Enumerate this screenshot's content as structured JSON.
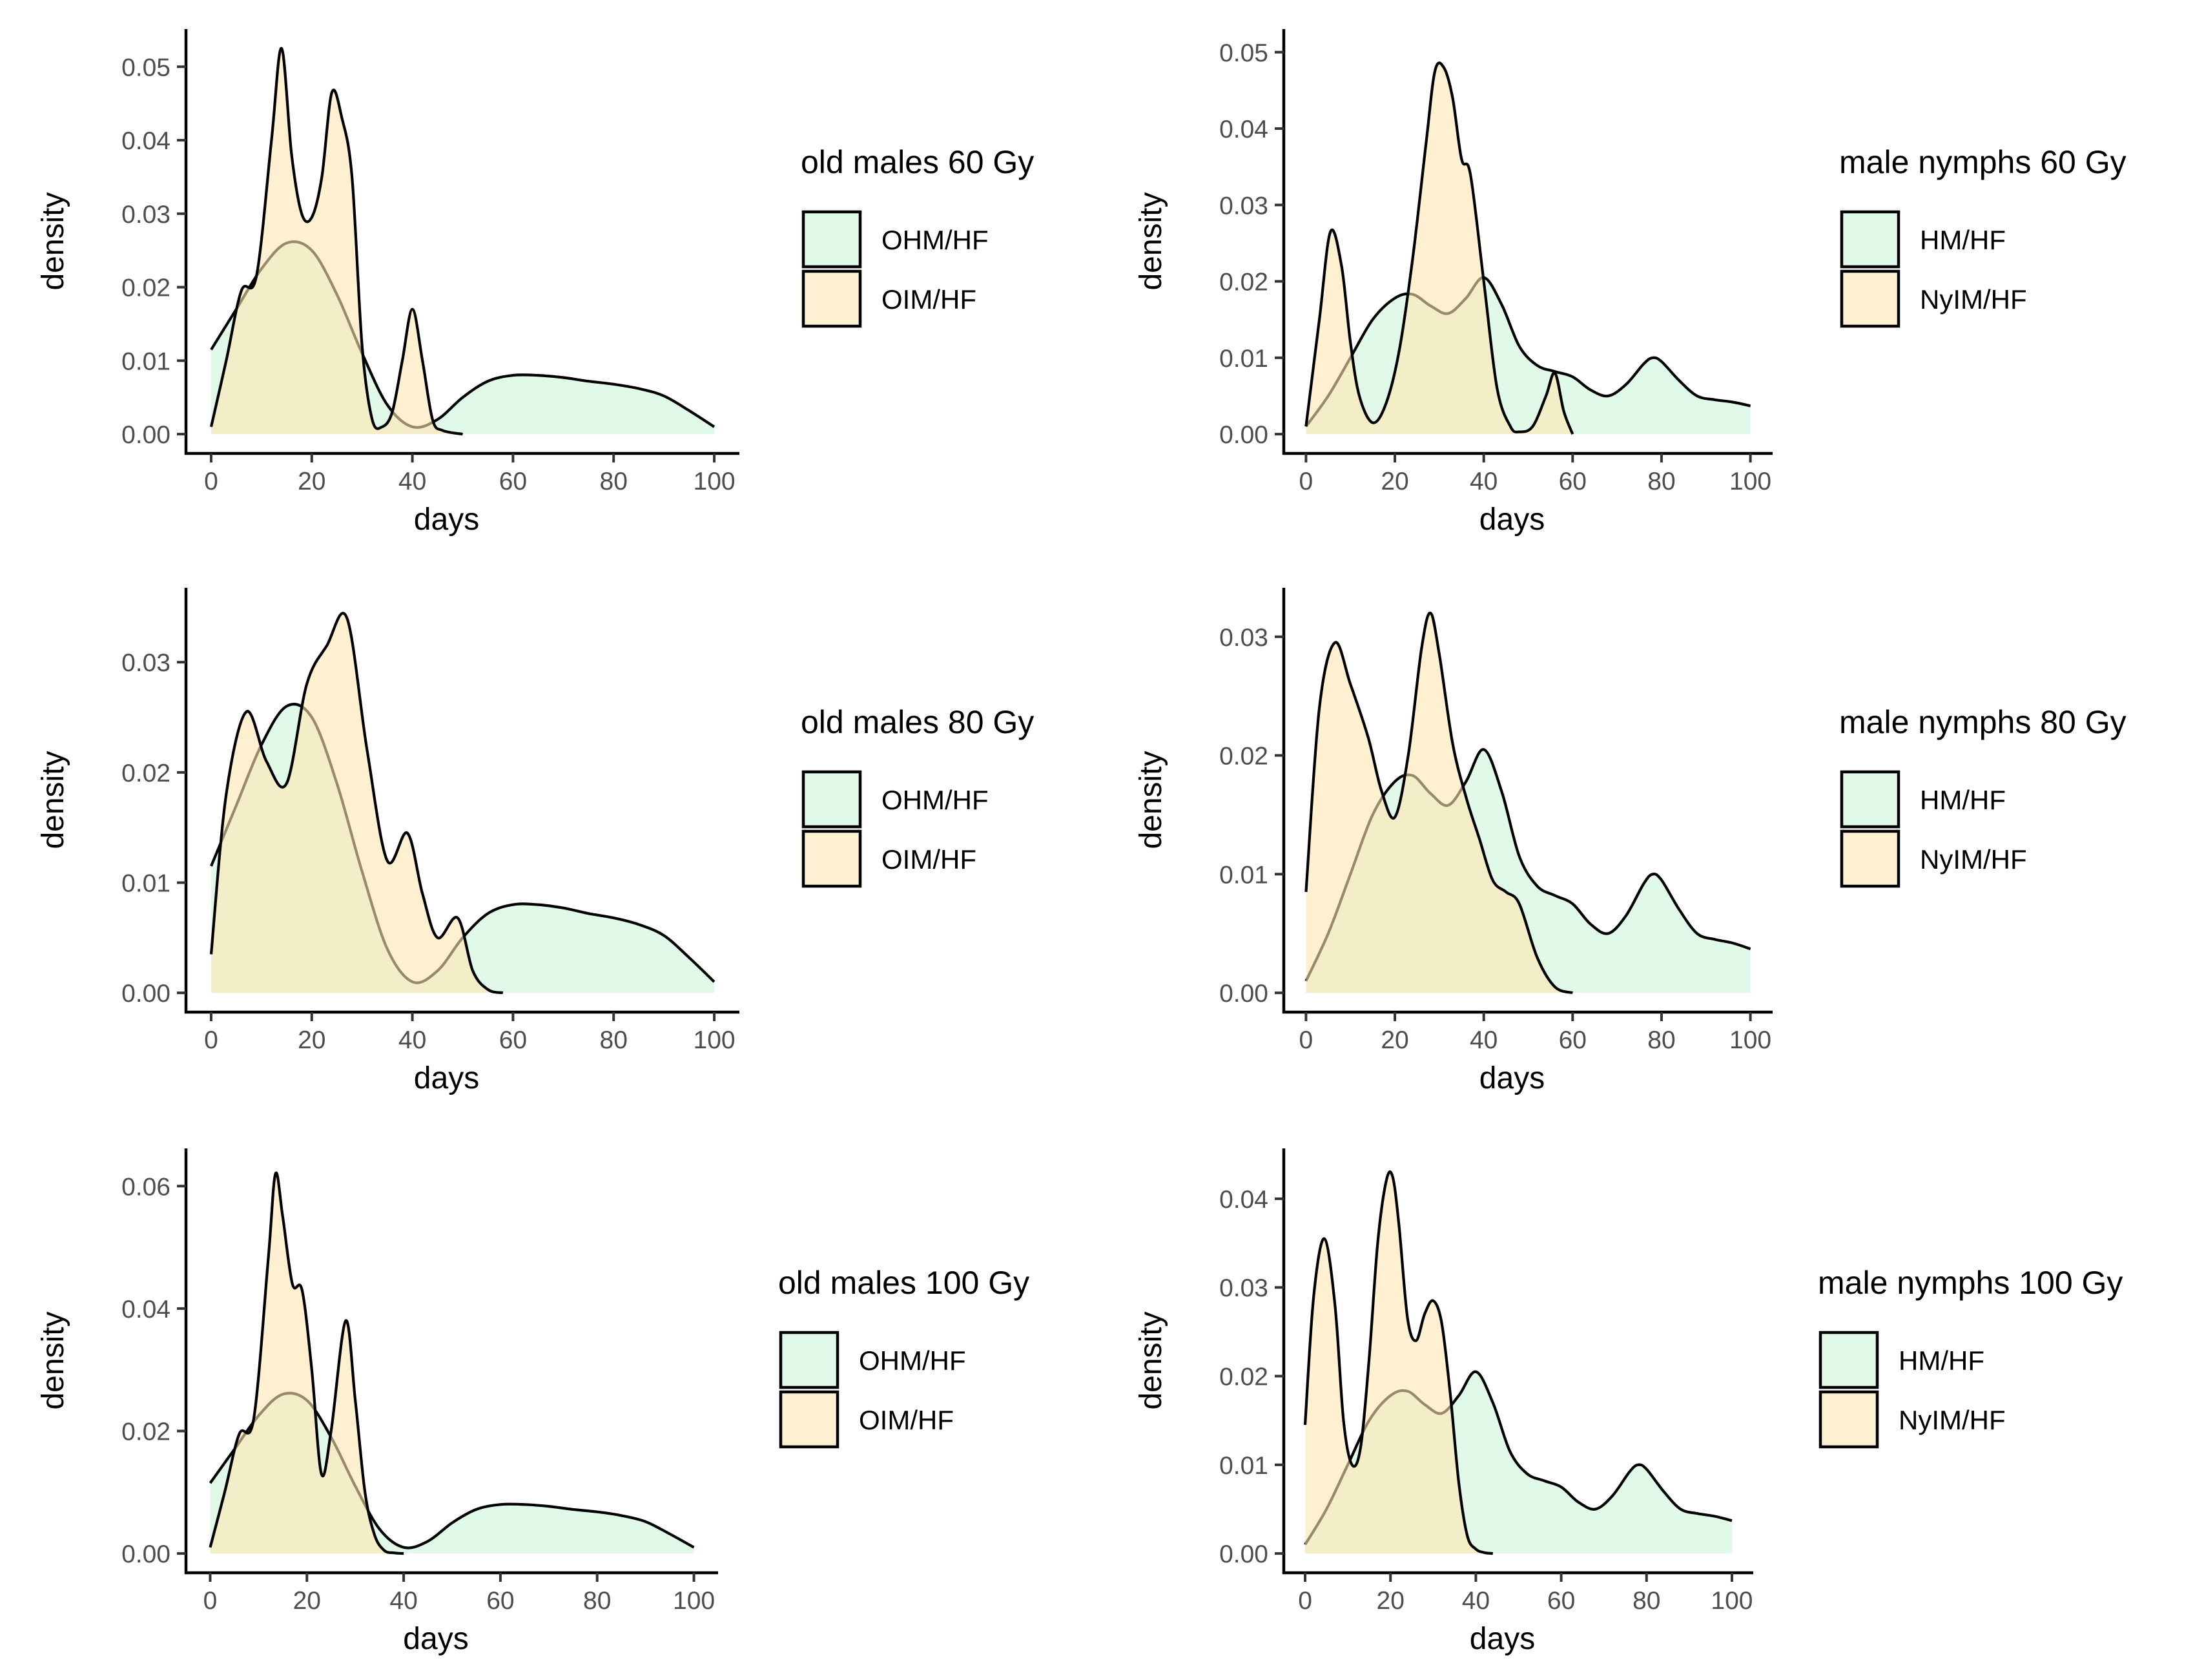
{
  "colors": {
    "green_fill": "#ccf5d9",
    "orange_fill": "#ffe6b3",
    "line": "#000000",
    "tick_text": "#4d4d4d"
  },
  "chart_data": [
    {
      "type": "area",
      "panel": "old-males-60",
      "xlabel": "days",
      "ylabel": "density",
      "xlim": [
        0,
        100
      ],
      "ylim": [
        0,
        0.0525
      ],
      "xticks": [
        0,
        20,
        40,
        60,
        80,
        100
      ],
      "yticks": [
        0,
        0.01,
        0.02,
        0.03,
        0.04,
        0.05
      ],
      "ytick_labels": [
        "0.00",
        "0.01",
        "0.02",
        "0.03",
        "0.04",
        "0.05"
      ],
      "legend": {
        "title": "old males 60 Gy",
        "position": "right",
        "items": [
          "OHM/HF",
          "OIM/HF"
        ]
      },
      "series": [
        {
          "name": "OHM/HF",
          "color": "green",
          "x": [
            0,
            5,
            10,
            15,
            20,
            25,
            30,
            35,
            40,
            45,
            50,
            55,
            60,
            65,
            70,
            75,
            80,
            85,
            90,
            95,
            100
          ],
          "y": [
            0.0115,
            0.017,
            0.0225,
            0.026,
            0.025,
            0.019,
            0.011,
            0.004,
            0.001,
            0.002,
            0.005,
            0.0072,
            0.008,
            0.008,
            0.0077,
            0.0072,
            0.0068,
            0.0062,
            0.0052,
            0.0032,
            0.001
          ]
        },
        {
          "name": "OIM/HF",
          "color": "orange",
          "x": [
            0,
            3,
            6,
            9,
            12,
            14,
            16,
            18,
            20,
            22,
            24,
            26,
            28,
            30,
            32,
            34,
            36,
            38,
            40,
            42,
            44,
            46,
            50
          ],
          "y": [
            0.001,
            0.01,
            0.0195,
            0.0215,
            0.04,
            0.0525,
            0.038,
            0.03,
            0.0295,
            0.035,
            0.0465,
            0.043,
            0.035,
            0.012,
            0.002,
            0.001,
            0.003,
            0.01,
            0.017,
            0.01,
            0.002,
            0.0005,
            0
          ]
        }
      ]
    },
    {
      "type": "area",
      "panel": "old-males-80",
      "xlabel": "days",
      "ylabel": "density",
      "xlim": [
        0,
        100
      ],
      "ylim": [
        0,
        0.035
      ],
      "xticks": [
        0,
        20,
        40,
        60,
        80,
        100
      ],
      "yticks": [
        0,
        0.01,
        0.02,
        0.03
      ],
      "ytick_labels": [
        "0.00",
        "0.01",
        "0.02",
        "0.03"
      ],
      "legend": {
        "title": "old males 80 Gy",
        "position": "right",
        "items": [
          "OHM/HF",
          "OIM/HF"
        ]
      },
      "series": [
        {
          "name": "OHM/HF",
          "color": "green",
          "x": [
            0,
            5,
            10,
            15,
            20,
            25,
            30,
            35,
            40,
            45,
            50,
            55,
            60,
            65,
            70,
            75,
            80,
            85,
            90,
            95,
            100
          ],
          "y": [
            0.0115,
            0.017,
            0.0225,
            0.026,
            0.025,
            0.019,
            0.011,
            0.004,
            0.001,
            0.002,
            0.005,
            0.0072,
            0.008,
            0.008,
            0.0077,
            0.0072,
            0.0068,
            0.0062,
            0.0052,
            0.0032,
            0.001
          ]
        },
        {
          "name": "OIM/HF",
          "color": "orange",
          "x": [
            0,
            3,
            7,
            11,
            15,
            19,
            23,
            27,
            31,
            35,
            39,
            42,
            45,
            49,
            52,
            55,
            58
          ],
          "y": [
            0.0035,
            0.018,
            0.0255,
            0.021,
            0.019,
            0.028,
            0.0315,
            0.034,
            0.022,
            0.012,
            0.0145,
            0.009,
            0.005,
            0.0068,
            0.002,
            0.0003,
            0
          ]
        }
      ]
    },
    {
      "type": "area",
      "panel": "old-males-100",
      "xlabel": "days",
      "ylabel": "density",
      "xlim": [
        0,
        100
      ],
      "ylim": [
        0,
        0.063
      ],
      "xticks": [
        0,
        20,
        40,
        60,
        80,
        100
      ],
      "yticks": [
        0,
        0.02,
        0.04,
        0.06
      ],
      "ytick_labels": [
        "0.00",
        "0.02",
        "0.04",
        "0.06"
      ],
      "legend": {
        "title": "old males 100 Gy",
        "position": "right",
        "items": [
          "OHM/HF",
          "OIM/HF"
        ]
      },
      "series": [
        {
          "name": "OHM/HF",
          "color": "green",
          "x": [
            0,
            5,
            10,
            15,
            20,
            25,
            30,
            35,
            40,
            45,
            50,
            55,
            60,
            65,
            70,
            75,
            80,
            85,
            90,
            95,
            100
          ],
          "y": [
            0.0115,
            0.017,
            0.0225,
            0.026,
            0.025,
            0.019,
            0.011,
            0.004,
            0.001,
            0.002,
            0.005,
            0.0072,
            0.008,
            0.008,
            0.0077,
            0.0072,
            0.0068,
            0.0062,
            0.0052,
            0.0032,
            0.001
          ]
        },
        {
          "name": "OIM/HF",
          "color": "orange",
          "x": [
            0,
            3,
            6,
            9,
            12,
            13.5,
            15,
            17,
            19,
            21,
            23,
            25,
            28,
            30,
            32,
            34,
            36,
            38,
            40
          ],
          "y": [
            0.001,
            0.01,
            0.0195,
            0.022,
            0.048,
            0.062,
            0.055,
            0.044,
            0.043,
            0.03,
            0.013,
            0.02,
            0.038,
            0.025,
            0.01,
            0.003,
            0.0005,
            0.0001,
            0
          ]
        }
      ]
    },
    {
      "type": "area",
      "panel": "male-nymphs-60",
      "xlabel": "days",
      "ylabel": "density",
      "xlim": [
        0,
        100
      ],
      "ylim": [
        0,
        0.0505
      ],
      "xticks": [
        0,
        20,
        40,
        60,
        80,
        100
      ],
      "yticks": [
        0,
        0.01,
        0.02,
        0.03,
        0.04,
        0.05
      ],
      "ytick_labels": [
        "0.00",
        "0.01",
        "0.02",
        "0.03",
        "0.04",
        "0.05"
      ],
      "legend": {
        "title": "male nymphs 60 Gy",
        "position": "right",
        "items": [
          "HM/HF",
          "NyIM/HF"
        ]
      },
      "series": [
        {
          "name": "HM/HF",
          "color": "green",
          "x": [
            0,
            5,
            10,
            15,
            20,
            24,
            28,
            32,
            36,
            40,
            44,
            48,
            52,
            56,
            60,
            64,
            68,
            72,
            76,
            78,
            80,
            84,
            88,
            92,
            96,
            100
          ],
          "y": [
            0.001,
            0.005,
            0.01,
            0.015,
            0.0178,
            0.0183,
            0.0168,
            0.0158,
            0.0178,
            0.0205,
            0.017,
            0.0115,
            0.009,
            0.0082,
            0.0075,
            0.0058,
            0.005,
            0.0065,
            0.0092,
            0.01,
            0.0095,
            0.007,
            0.005,
            0.0045,
            0.0042,
            0.0037
          ]
        },
        {
          "name": "NyIM/HF",
          "color": "orange",
          "x": [
            0,
            3,
            5.5,
            8,
            10,
            12,
            15,
            18,
            21,
            24,
            27,
            29,
            31,
            33,
            35,
            37,
            40,
            43,
            46,
            48,
            51,
            54,
            56,
            58,
            60
          ],
          "y": [
            0.001,
            0.015,
            0.0265,
            0.022,
            0.012,
            0.005,
            0.0015,
            0.004,
            0.011,
            0.023,
            0.038,
            0.0475,
            0.048,
            0.044,
            0.036,
            0.034,
            0.02,
            0.006,
            0.001,
            0.0003,
            0.001,
            0.005,
            0.008,
            0.003,
            0
          ]
        }
      ]
    },
    {
      "type": "area",
      "panel": "male-nymphs-80",
      "xlabel": "days",
      "ylabel": "density",
      "xlim": [
        0,
        100
      ],
      "ylim": [
        0,
        0.0325
      ],
      "xticks": [
        0,
        20,
        40,
        60,
        80,
        100
      ],
      "yticks": [
        0,
        0.01,
        0.02,
        0.03
      ],
      "ytick_labels": [
        "0.00",
        "0.01",
        "0.02",
        "0.03"
      ],
      "legend": {
        "title": "male nymphs 80 Gy",
        "position": "right",
        "items": [
          "HM/HF",
          "NyIM/HF"
        ]
      },
      "series": [
        {
          "name": "HM/HF",
          "color": "green",
          "x": [
            0,
            5,
            10,
            15,
            20,
            24,
            28,
            32,
            36,
            40,
            44,
            48,
            52,
            56,
            60,
            64,
            68,
            72,
            76,
            78,
            80,
            84,
            88,
            92,
            96,
            100
          ],
          "y": [
            0.001,
            0.005,
            0.01,
            0.015,
            0.0178,
            0.0183,
            0.0168,
            0.0158,
            0.0178,
            0.0205,
            0.017,
            0.0115,
            0.009,
            0.0082,
            0.0075,
            0.0058,
            0.005,
            0.0065,
            0.0092,
            0.01,
            0.0095,
            0.007,
            0.005,
            0.0045,
            0.0042,
            0.0037
          ]
        },
        {
          "name": "NyIM/HF",
          "color": "orange",
          "x": [
            0,
            3,
            6.5,
            10,
            14,
            17,
            20,
            23,
            26,
            28,
            30,
            33,
            36,
            39,
            42,
            45,
            48,
            52,
            56,
            60
          ],
          "y": [
            0.0085,
            0.024,
            0.0295,
            0.026,
            0.0215,
            0.017,
            0.0148,
            0.02,
            0.029,
            0.032,
            0.0285,
            0.021,
            0.0165,
            0.013,
            0.0095,
            0.0085,
            0.0075,
            0.003,
            0.0005,
            0
          ]
        }
      ]
    },
    {
      "type": "area",
      "panel": "male-nymphs-100",
      "xlabel": "days",
      "ylabel": "density",
      "xlim": [
        0,
        100
      ],
      "ylim": [
        0,
        0.0435
      ],
      "xticks": [
        0,
        20,
        40,
        60,
        80,
        100
      ],
      "yticks": [
        0,
        0.01,
        0.02,
        0.03,
        0.04
      ],
      "ytick_labels": [
        "0.00",
        "0.01",
        "0.02",
        "0.03",
        "0.04"
      ],
      "legend": {
        "title": "male nymphs 100 Gy",
        "position": "right",
        "items": [
          "HM/HF",
          "NyIM/HF"
        ]
      },
      "series": [
        {
          "name": "HM/HF",
          "color": "green",
          "x": [
            0,
            5,
            10,
            15,
            20,
            24,
            28,
            32,
            36,
            40,
            44,
            48,
            52,
            56,
            60,
            64,
            68,
            72,
            76,
            78,
            80,
            84,
            88,
            92,
            96,
            100
          ],
          "y": [
            0.001,
            0.005,
            0.01,
            0.015,
            0.0178,
            0.0183,
            0.0168,
            0.0158,
            0.0178,
            0.0205,
            0.017,
            0.0115,
            0.009,
            0.0082,
            0.0075,
            0.0058,
            0.005,
            0.0065,
            0.0092,
            0.01,
            0.0095,
            0.007,
            0.005,
            0.0045,
            0.0042,
            0.0037
          ]
        },
        {
          "name": "NyIM/HF",
          "color": "orange",
          "x": [
            0,
            2,
            4.5,
            7,
            9,
            11,
            13,
            15,
            17,
            19,
            20.5,
            22,
            24,
            26,
            28,
            30,
            32,
            34,
            36,
            38,
            40,
            42,
            44
          ],
          "y": [
            0.0145,
            0.029,
            0.0355,
            0.028,
            0.015,
            0.01,
            0.012,
            0.022,
            0.035,
            0.042,
            0.0425,
            0.037,
            0.0265,
            0.024,
            0.027,
            0.0285,
            0.026,
            0.018,
            0.008,
            0.002,
            0.0005,
            0.0001,
            0
          ]
        }
      ]
    }
  ]
}
